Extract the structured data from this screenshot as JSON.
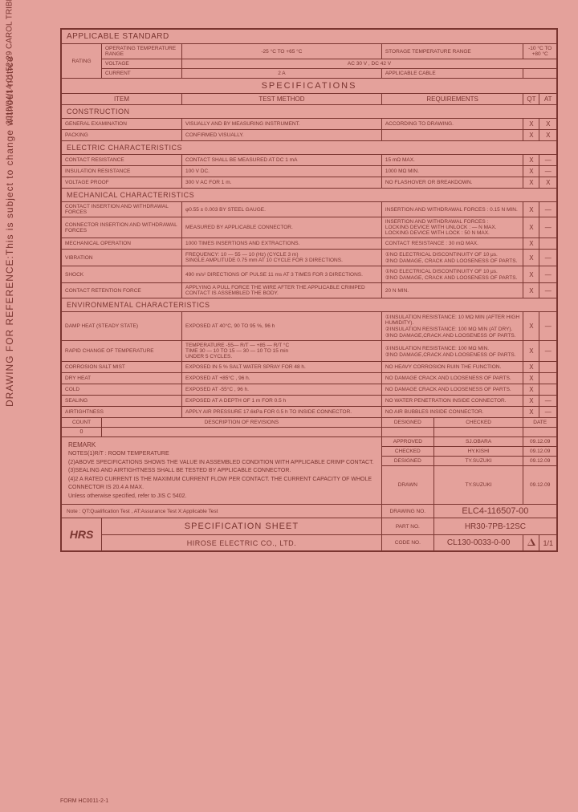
{
  "vertical_ref": "DRAWING FOR REFERENCE:This is subject to change without notice",
  "vertical_date": "2010/04/14 01:52:29 CAROL TRIBBLE",
  "form_no": "FORM HC0011-2-1",
  "applicable_standard": {
    "header": "APPLICABLE STANDARD",
    "rating_label": "RATING",
    "op_temp_label": "OPERATING TEMPERATURE RANGE",
    "op_temp_val": "-25 °C TO +65 °C",
    "storage_temp_label": "STORAGE TEMPERATURE RANGE",
    "storage_temp_val": "-10 °C TO +80 °C",
    "voltage_label": "VOLTAGE",
    "voltage_val": "AC 30 V , DC 42 V",
    "current_label": "CURRENT",
    "current_val": "2 A",
    "cable_label": "APPLICABLE CABLE",
    "cable_val": ""
  },
  "specifications": {
    "title": "SPECIFICATIONS",
    "item_h": "ITEM",
    "method_h": "TEST METHOD",
    "req_h": "REQUIREMENTS",
    "qt_h": "QT",
    "at_h": "AT"
  },
  "construction": {
    "header": "CONSTRUCTION",
    "rows": [
      {
        "item": "GENERAL EXAMINATION",
        "method": "VISUALLY AND BY MEASURING INSTRUMENT.",
        "req": "ACCORDING TO DRAWING.",
        "qt": "X",
        "at": "X"
      },
      {
        "item": "PACKING",
        "method": "CONFIRMED VISUALLY.",
        "req": "",
        "qt": "X",
        "at": "X"
      }
    ]
  },
  "electric": {
    "header": "ELECTRIC CHARACTERISTICS",
    "rows": [
      {
        "item": "CONTACT RESISTANCE",
        "method": "CONTACT SHALL BE MEASURED AT DC 1 mA",
        "req": "15 mΩ MAX.",
        "qt": "X",
        "at": "—"
      },
      {
        "item": "INSULATION RESISTANCE",
        "method": "100 V DC.",
        "req": "1000 MΩ MIN.",
        "qt": "X",
        "at": "—"
      },
      {
        "item": "VOLTAGE PROOF",
        "method": "300 V AC FOR 1 m.",
        "req": "NO FLASHOVER OR BREAKDOWN.",
        "qt": "X",
        "at": "X"
      }
    ]
  },
  "mechanical": {
    "header": "MECHANICAL CHARACTERISTICS",
    "rows": [
      {
        "item": "CONTACT INSERTION AND WITHDRAWAL FORCES",
        "method": "φ0.55 ± 0.003 BY STEEL GAUGE.",
        "req": "INSERTION AND WITHDRAWAL FORCES : 0.15 N MIN.",
        "qt": "X",
        "at": "—"
      },
      {
        "item": "CONNECTOR INSERTION AND WITHDRAWAL FORCES",
        "method": "MEASURED BY APPLICABLE CONNECTOR.",
        "req": "INSERTION AND WITHDRAWAL FORCES :\nLOCKING DEVICE WITH UNLOCK : — N MAX.\nLOCKING DEVICE WITH LOCK : 50 N MAX.",
        "qt": "X",
        "at": "—"
      },
      {
        "item": "MECHANICAL OPERATION",
        "method": "1000 TIMES INSERTIONS AND EXTRACTIONS.",
        "req": "CONTACT RESISTANCE : 30 mΩ MAX.",
        "qt": "X",
        "at": ""
      },
      {
        "item": "VIBRATION",
        "method": "FREQUENCY: 10 — 55 — 10 (Hz) (CYCLE 3 m)\nSINGLE AMPLITUDE 0.75 mm AT 10 CYCLE FOR 3 DIRECTIONS.",
        "req": "①NO ELECTRICAL DISCONTINUITY OF 10 μs.\n②NO DAMAGE, CRACK AND LOOSENESS OF PARTS.",
        "qt": "X",
        "at": "—"
      },
      {
        "item": "SHOCK",
        "method": "490 m/s² DIRECTIONS OF PULSE 11 ms AT 3 TIMES FOR 3 DIRECTIONS.",
        "req": "①NO ELECTRICAL DISCONTINUITY OF 10 μs.\n②NO DAMAGE, CRACK AND LOOSENESS OF PARTS.",
        "qt": "X",
        "at": "—"
      },
      {
        "item": "CONTACT RETENTION FORCE",
        "method": "APPLYING A PULL FORCE THE WIRE AFTER THE APPLICABLE CRIMPED CONTACT IS ASSEMBLED THE BODY.",
        "req": "20 N MIN.",
        "qt": "X",
        "at": "—"
      }
    ]
  },
  "environmental": {
    "header": "ENVIRONMENTAL CHARACTERISTICS",
    "rows": [
      {
        "item": "DAMP HEAT (STEADY STATE)",
        "method": "EXPOSED AT 40°C, 90 TO 95 %, 96 h",
        "req": "①INSULATION RESISTANCE: 10 MΩ MIN (AFTER HIGH HUMIDITY).\n②INSULATION RESISTANCE: 100 MΩ MIN (AT DRY).\n③NO DAMAGE,CRACK AND LOOSENESS OF PARTS.",
        "qt": "X",
        "at": "—"
      },
      {
        "item": "RAPID CHANGE OF TEMPERATURE",
        "method": "TEMPERATURE -55— R/T — +85 — R/T °C\nTIME 30 — 10 TO 15 — 30 — 10 TO 15 min\nUNDER 5 CYCLES.",
        "req": "①INSULATION RESISTANCE: 100 MΩ MIN.\n②NO DAMAGE,CRACK AND LOOSENESS OF PARTS.",
        "qt": "X",
        "at": "—"
      },
      {
        "item": "CORROSION SALT MIST",
        "method": "EXPOSED IN 5 % SALT WATER SPRAY FOR 48 h.",
        "req": "NO HEAVY CORROSION RUIN THE FUNCTION.",
        "qt": "X",
        "at": ""
      },
      {
        "item": "DRY HEAT",
        "method": "EXPOSED AT +85°C , 96 h.",
        "req": "NO DAMAGE CRACK AND LOOSENESS OF PARTS.",
        "qt": "X",
        "at": ""
      },
      {
        "item": "COLD",
        "method": "EXPOSED AT -55°C , 96 h.",
        "req": "NO DAMAGE CRACK AND LOOSENESS OF PARTS.",
        "qt": "X",
        "at": ""
      },
      {
        "item": "SEALING",
        "method": "EXPOSED AT A DEPTH OF 1 m FOR 0.5 h",
        "req": "NO WATER PENETRATION INSIDE CONNECTOR.",
        "qt": "X",
        "at": "—"
      },
      {
        "item": "AIRTIGHTNESS",
        "method": "APPLY AIR PRESSURE 17.6kPa FOR 0.5 h TO INSIDE CONNECTOR.",
        "req": "NO AIR BUBBLES INSIDE CONNECTOR.",
        "qt": "X",
        "at": "—"
      }
    ]
  },
  "revisions": {
    "rev_no": "0",
    "count_h": "COUNT",
    "desc_h": "DESCRIPTION OF REVISIONS",
    "designed_h": "DESIGNED",
    "checked_h": "CHECKED",
    "date_h": "DATE"
  },
  "remark": {
    "header": "REMARK",
    "line1": "NOTES(1)R/T : ROOM TEMPERATURE",
    "line2": "(2)ABOVE SPECIFICATIONS SHOWS THE VALUE IN ASSEMBLED CONDITION WITH APPLICABLE CRIMP CONTACT.",
    "line3": "(3)SEALING AND AIRTIGHTNESS SHALL BE TESTED BY APPLICABLE CONNECTOR.",
    "line4": "(4)2 A RATED CURRENT IS THE MAXIMUM CURRENT FLOW PER CONTACT. THE CURRENT CAPACITY OF WHOLE CONNECTOR IS 20.4 A MAX.",
    "line5": "Unless otherwise specified, refer to JIS C 5402.",
    "note": "Note : QT:Qualification Test , AT:Assurance Test X:Applicable Test"
  },
  "approval": {
    "approved_l": "APPROVED",
    "approved_n": "SJ.OBARA",
    "approved_d": "09.12.09",
    "checked_l": "CHECKED",
    "checked_n": "HY.KISHI",
    "checked_d": "09.12.09",
    "designed_l": "DESIGNED",
    "designed_n": "TY.SUZUKI",
    "designed_d": "09.12.09",
    "drawn_l": "DRAWN",
    "drawn_n": "TY.SUZUKI",
    "drawn_d": "09.12.09"
  },
  "footer": {
    "drawing_no_l": "DRAWING NO.",
    "drawing_no": "ELC4-116507-00",
    "logo": "HRS",
    "spec_sheet": "SPECIFICATION SHEET",
    "company": "HIROSE ELECTRIC CO., LTD.",
    "part_no_l": "PART NO.",
    "part_no": "HR30-7PB-12SC",
    "code_no_l": "CODE NO.",
    "code_no": "CL130-0033-0-00",
    "page": "1/1"
  }
}
